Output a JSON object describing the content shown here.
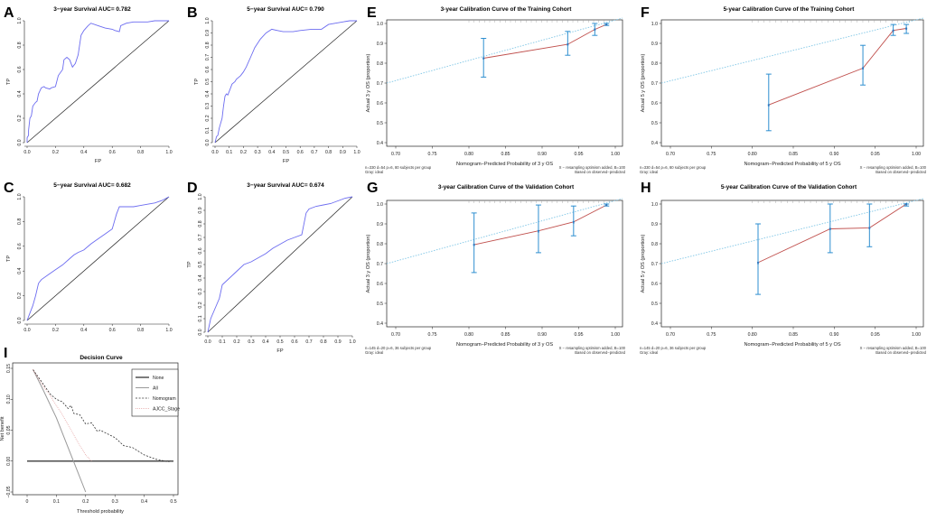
{
  "colors": {
    "roc": "#6c6cf0",
    "ideal": "#7fc6e6",
    "apparent": "#c0504d",
    "errorbar": "#2e8fd0",
    "diag": "#222222",
    "grid_grey": "#999999"
  },
  "chart_data": [
    {
      "panel": "A",
      "type": "line",
      "subtype": "roc",
      "title": "3−year Survival AUC= 0.782",
      "xlabel": "FP",
      "ylabel": "TP",
      "xlim": [
        0,
        1
      ],
      "ylim": [
        0,
        1
      ],
      "ticks": [
        "0.0",
        "0.2",
        "0.4",
        "0.6",
        "0.8",
        "1.0"
      ],
      "show_xlabel": true,
      "x": [
        0,
        0,
        0.01,
        0.01,
        0.02,
        0.03,
        0.04,
        0.06,
        0.07,
        0.08,
        0.1,
        0.12,
        0.13,
        0.16,
        0.17,
        0.2,
        0.22,
        0.25,
        0.26,
        0.28,
        0.3,
        0.32,
        0.34,
        0.36,
        0.38,
        0.4,
        0.43,
        0.45,
        0.5,
        0.55,
        0.6,
        0.62,
        0.65,
        0.66,
        0.7,
        0.75,
        0.8,
        0.85,
        0.9,
        0.95,
        1
      ],
      "y": [
        0,
        0.04,
        0.06,
        0.1,
        0.2,
        0.22,
        0.3,
        0.33,
        0.34,
        0.4,
        0.45,
        0.46,
        0.45,
        0.44,
        0.45,
        0.46,
        0.55,
        0.6,
        0.68,
        0.7,
        0.68,
        0.62,
        0.65,
        0.72,
        0.88,
        0.92,
        0.96,
        0.98,
        0.96,
        0.94,
        0.93,
        0.92,
        0.91,
        0.96,
        0.98,
        0.99,
        0.99,
        0.99,
        1,
        1,
        1
      ],
      "notes": []
    },
    {
      "panel": "B",
      "type": "line",
      "subtype": "roc",
      "title": "5−year Survival AUC= 0.790",
      "xlabel": "FP",
      "ylabel": "TP",
      "xlim": [
        0,
        1
      ],
      "ylim": [
        0,
        1
      ],
      "ticks": [
        "0.0",
        "0.1",
        "0.2",
        "0.3",
        "0.4",
        "0.5",
        "0.6",
        "0.7",
        "0.8",
        "0.9",
        "1.0"
      ],
      "show_xlabel": true,
      "x": [
        0,
        0.01,
        0.02,
        0.03,
        0.05,
        0.06,
        0.07,
        0.08,
        0.09,
        0.1,
        0.12,
        0.14,
        0.15,
        0.18,
        0.2,
        0.22,
        0.25,
        0.28,
        0.32,
        0.36,
        0.4,
        0.44,
        0.48,
        0.55,
        0.6,
        0.68,
        0.75,
        0.8,
        0.85,
        0.9,
        0.95,
        1
      ],
      "y": [
        0,
        0.05,
        0.06,
        0.12,
        0.2,
        0.3,
        0.38,
        0.4,
        0.39,
        0.42,
        0.48,
        0.5,
        0.52,
        0.55,
        0.58,
        0.62,
        0.7,
        0.78,
        0.85,
        0.9,
        0.93,
        0.92,
        0.91,
        0.91,
        0.92,
        0.93,
        0.93,
        0.97,
        0.98,
        0.99,
        1,
        1
      ],
      "notes": []
    },
    {
      "panel": "C",
      "type": "line",
      "subtype": "roc",
      "title": "5−year Survival AUC= 0.682",
      "xlabel": "",
      "ylabel": "TP",
      "xlim": [
        0,
        1
      ],
      "ylim": [
        0,
        1
      ],
      "ticks": [
        "0.0",
        "0.2",
        "0.4",
        "0.6",
        "0.8",
        "1.0"
      ],
      "show_xlabel": false,
      "x": [
        0,
        0.02,
        0.04,
        0.06,
        0.08,
        0.1,
        0.15,
        0.2,
        0.25,
        0.3,
        0.33,
        0.36,
        0.4,
        0.45,
        0.5,
        0.55,
        0.6,
        0.63,
        0.65,
        0.7,
        0.75,
        0.8,
        0.85,
        0.9,
        0.95,
        1
      ],
      "y": [
        0,
        0.06,
        0.12,
        0.2,
        0.3,
        0.33,
        0.37,
        0.41,
        0.45,
        0.5,
        0.53,
        0.55,
        0.57,
        0.62,
        0.66,
        0.7,
        0.74,
        0.86,
        0.92,
        0.92,
        0.92,
        0.93,
        0.94,
        0.95,
        0.97,
        1
      ],
      "notes": []
    },
    {
      "panel": "D",
      "type": "line",
      "subtype": "roc",
      "title": "3−year Survival AUC= 0.674",
      "xlabel": "FP",
      "ylabel": "TP",
      "xlim": [
        0,
        1
      ],
      "ylim": [
        0,
        1
      ],
      "ticks": [
        "0.0",
        "0.1",
        "0.2",
        "0.3",
        "0.4",
        "0.5",
        "0.6",
        "0.7",
        "0.8",
        "0.9",
        "1.0"
      ],
      "show_xlabel": true,
      "x": [
        0,
        0.02,
        0.04,
        0.06,
        0.08,
        0.1,
        0.15,
        0.2,
        0.25,
        0.3,
        0.35,
        0.4,
        0.45,
        0.5,
        0.55,
        0.6,
        0.65,
        0.68,
        0.7,
        0.75,
        0.8,
        0.85,
        0.9,
        0.95,
        1
      ],
      "y": [
        0,
        0.1,
        0.15,
        0.2,
        0.25,
        0.35,
        0.4,
        0.45,
        0.5,
        0.52,
        0.55,
        0.58,
        0.62,
        0.65,
        0.68,
        0.7,
        0.72,
        0.88,
        0.91,
        0.93,
        0.94,
        0.95,
        0.97,
        0.99,
        1
      ],
      "notes": []
    },
    {
      "panel": "E",
      "type": "line",
      "subtype": "calibration",
      "title": "3-year Calibration Curve of the Training Cohort",
      "xlabel": "Nomogram−Predicted Probability of 3 y OS",
      "ylabel": "Actual 3 y OS (proportion)",
      "xlim": [
        0.7,
        1.0
      ],
      "ylim": [
        0.4,
        1.0
      ],
      "xticks": [
        "0.70",
        "0.75",
        "0.80",
        "0.85",
        "0.90",
        "0.95",
        "1.00"
      ],
      "yticks": [
        "0.4",
        "0.5",
        "0.6",
        "0.7",
        "0.8",
        "0.9",
        "1.0"
      ],
      "points": [
        {
          "x": 0.82,
          "y": 0.825,
          "lo": 0.73,
          "hi": 0.925
        },
        {
          "x": 0.935,
          "y": 0.895,
          "lo": 0.84,
          "hi": 0.96
        },
        {
          "x": 0.972,
          "y": 0.97,
          "lo": 0.94,
          "hi": 1.0
        },
        {
          "x": 0.988,
          "y": 0.995,
          "lo": 0.99,
          "hi": 1.0
        }
      ],
      "notes": [
        "n=330 d=54 p=6, 80 subjects per group",
        "Gray: ideal",
        "X − resampling optimism added, B=100",
        "Based on observed−predicted"
      ]
    },
    {
      "panel": "F",
      "type": "line",
      "subtype": "calibration",
      "title": "5-year Calibration Curve of the Training Cohort",
      "xlabel": "Nomogram−Predicted Probability of 5 y OS",
      "ylabel": "Actual 5 y OS (proportion)",
      "xlim": [
        0.7,
        1.0
      ],
      "ylim": [
        0.4,
        1.0
      ],
      "xticks": [
        "0.70",
        "0.75",
        "0.80",
        "0.85",
        "0.90",
        "0.95",
        "1.00"
      ],
      "yticks": [
        "0.4",
        "0.5",
        "0.6",
        "0.7",
        "0.8",
        "0.9",
        "1.0"
      ],
      "points": [
        {
          "x": 0.82,
          "y": 0.59,
          "lo": 0.46,
          "hi": 0.745
        },
        {
          "x": 0.935,
          "y": 0.775,
          "lo": 0.69,
          "hi": 0.89
        },
        {
          "x": 0.972,
          "y": 0.965,
          "lo": 0.94,
          "hi": 0.995
        },
        {
          "x": 0.988,
          "y": 0.975,
          "lo": 0.95,
          "hi": 0.995
        }
      ],
      "notes": [
        "n=330 d=54 p=6, 80 subjects per group",
        "Gray: ideal",
        "X − resampling optimism added, B=100",
        "Based on observed−predicted"
      ]
    },
    {
      "panel": "G",
      "type": "line",
      "subtype": "calibration",
      "title": "3-year Calibration Curve of the Validation Cohort",
      "xlabel": "Nomogram−Predicted Probability of 3 y OS",
      "ylabel": "Actual 3 y OS (proportion)",
      "xlim": [
        0.7,
        1.0
      ],
      "ylim": [
        0.4,
        1.0
      ],
      "xticks": [
        "0.70",
        "0.75",
        "0.80",
        "0.85",
        "0.90",
        "0.95",
        "1.00"
      ],
      "yticks": [
        "0.4",
        "0.5",
        "0.6",
        "0.7",
        "0.8",
        "0.9",
        "1.0"
      ],
      "points": [
        {
          "x": 0.807,
          "y": 0.795,
          "lo": 0.655,
          "hi": 0.955
        },
        {
          "x": 0.895,
          "y": 0.865,
          "lo": 0.755,
          "hi": 0.995
        },
        {
          "x": 0.943,
          "y": 0.91,
          "lo": 0.84,
          "hi": 0.99
        },
        {
          "x": 0.988,
          "y": 0.995,
          "lo": 0.99,
          "hi": 1.0
        }
      ],
      "notes": [
        "n=145 d=20 p=6, 36 subjects per group",
        "Gray: ideal",
        "X − resampling optimism added, B=100",
        "Based on observed−predicted"
      ]
    },
    {
      "panel": "H",
      "type": "line",
      "subtype": "calibration",
      "title": "5-year Calibration Curve of the Validation Cohort",
      "xlabel": "Nomogram−Predicted Probability of 5 y OS",
      "ylabel": "Actual 5 y OS (proportion)",
      "xlim": [
        0.7,
        1.0
      ],
      "ylim": [
        0.4,
        1.0
      ],
      "xticks": [
        "0.70",
        "0.75",
        "0.80",
        "0.85",
        "0.90",
        "0.95",
        "1.00"
      ],
      "yticks": [
        "0.4",
        "0.5",
        "0.6",
        "0.7",
        "0.8",
        "0.9",
        "1.0"
      ],
      "points": [
        {
          "x": 0.807,
          "y": 0.705,
          "lo": 0.545,
          "hi": 0.9
        },
        {
          "x": 0.895,
          "y": 0.875,
          "lo": 0.755,
          "hi": 1.0
        },
        {
          "x": 0.943,
          "y": 0.88,
          "lo": 0.785,
          "hi": 1.0
        },
        {
          "x": 0.988,
          "y": 1.0,
          "lo": 0.99,
          "hi": 1.0
        }
      ],
      "notes": [
        "n=145 d=20 p=6, 36 subjects per group",
        "Gray: ideal",
        "X − resampling optimism added, B=100",
        "Based on observed−predicted"
      ]
    },
    {
      "panel": "I",
      "type": "line",
      "subtype": "decision",
      "title": "Decision Curve",
      "xlabel": "Threshold probability",
      "ylabel": "Net benefit",
      "xlim": [
        0,
        0.5
      ],
      "ylim": [
        -0.05,
        0.15
      ],
      "xticks": [
        "0",
        "0.1",
        "0.2",
        "0.3",
        "0.4",
        "0.5"
      ],
      "yticks": [
        "−0.05",
        "0.00",
        "0.05",
        "0.10",
        "0.15"
      ],
      "legend": [
        "None",
        "All",
        "Nomogram",
        "AJCC_Stage"
      ],
      "series": [
        {
          "name": "None",
          "x": [
            0,
            0.5
          ],
          "y": [
            0,
            0
          ]
        },
        {
          "name": "All",
          "x": [
            0.02,
            0.05,
            0.1,
            0.15,
            0.2
          ],
          "y": [
            0.148,
            0.12,
            0.07,
            0.01,
            -0.05
          ]
        },
        {
          "name": "Nomogram",
          "x": [
            0.02,
            0.05,
            0.08,
            0.1,
            0.12,
            0.14,
            0.15,
            0.16,
            0.18,
            0.2,
            0.22,
            0.24,
            0.25,
            0.27,
            0.3,
            0.33,
            0.36,
            0.4,
            0.44,
            0.48,
            0.5
          ],
          "y": [
            0.148,
            0.128,
            0.108,
            0.1,
            0.096,
            0.085,
            0.09,
            0.077,
            0.075,
            0.06,
            0.062,
            0.048,
            0.05,
            0.045,
            0.038,
            0.025,
            0.022,
            0.01,
            0.003,
            -0.001,
            0
          ]
        },
        {
          "name": "AJCC_Stage",
          "x": [
            0.02,
            0.05,
            0.08,
            0.1,
            0.12,
            0.15,
            0.18,
            0.2,
            0.22
          ],
          "y": [
            0.148,
            0.125,
            0.105,
            0.09,
            0.075,
            0.05,
            0.025,
            0.01,
            0
          ]
        }
      ]
    }
  ]
}
